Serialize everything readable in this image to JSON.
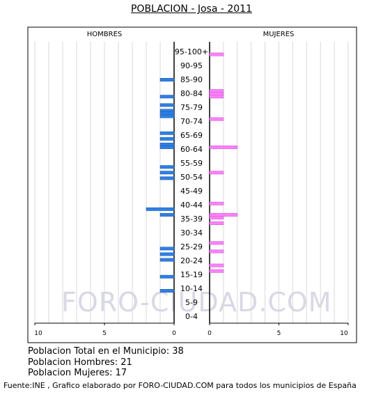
{
  "title": "POBLACION - Josa - 2011",
  "watermark": "FORO-CIUDAD.COM",
  "stats": {
    "total": "Poblacion Total en el Municipio: 38",
    "men": "Poblacion Hombres: 21",
    "women": "Poblacion Mujeres: 17"
  },
  "source": "Fuente:INE , Grafico elaborado por FORO-CIUDAD.COM para todos los municipios de España",
  "colors": {
    "men": "#2d7fe6",
    "women": "#ff80ff",
    "grid": "#d9d9d9"
  },
  "chart_data": {
    "type": "bar",
    "orientation": "horizontal",
    "left_label": "HOMBRES",
    "right_label": "MUJERES",
    "xlim": [
      0,
      10
    ],
    "x_ticks": [
      "10",
      "5",
      "0",
      "0",
      "5",
      "10"
    ],
    "age_groups": [
      "95-100+",
      "90-95",
      "85-90",
      "80-84",
      "75-79",
      "70-74",
      "65-69",
      "60-64",
      "55-59",
      "50-54",
      "45-49",
      "40-44",
      "35-39",
      "30-34",
      "25-29",
      "20-24",
      "15-19",
      "10-14",
      "5-9",
      "0-4"
    ],
    "ages": [
      95,
      94,
      93,
      92,
      91,
      90,
      89,
      88,
      87,
      86,
      85,
      84,
      83,
      82,
      81,
      80,
      79,
      78,
      77,
      76,
      75,
      74,
      73,
      72,
      71,
      70,
      69,
      68,
      67,
      66,
      65,
      64,
      63,
      62,
      61,
      60,
      59,
      58,
      57,
      56,
      55,
      54,
      53,
      52,
      51,
      50,
      49,
      48,
      47,
      46,
      45,
      44,
      43,
      42,
      41,
      40,
      39,
      38,
      37,
      36,
      35,
      34,
      33,
      32,
      31,
      30,
      29,
      28,
      27,
      26,
      25,
      24,
      23,
      22,
      21,
      20,
      19,
      18,
      17,
      16,
      15,
      14,
      13,
      12,
      11,
      10,
      9,
      8,
      7,
      6,
      5,
      4,
      3,
      2,
      1,
      0
    ],
    "series": [
      {
        "name": "HOMBRES",
        "side": "left",
        "values": [
          0,
          0,
          0,
          0,
          0,
          0,
          0,
          0,
          0,
          0,
          0,
          0,
          1,
          0,
          0,
          0,
          0,
          0,
          1,
          0,
          0,
          1,
          0,
          1,
          1,
          1,
          0,
          0,
          0,
          0,
          0,
          1,
          0,
          1,
          0,
          1,
          1,
          0,
          0,
          0,
          0,
          0,
          0,
          1,
          0,
          1,
          0,
          1,
          0,
          0,
          0,
          0,
          0,
          0,
          0,
          0,
          0,
          0,
          2,
          0,
          1,
          0,
          0,
          0,
          0,
          0,
          0,
          0,
          0,
          0,
          0,
          0,
          1,
          0,
          1,
          0,
          1,
          0,
          0,
          0,
          0,
          0,
          1,
          0,
          0,
          0,
          0,
          1,
          0,
          0,
          0,
          0,
          0,
          0,
          0,
          0
        ]
      },
      {
        "name": "MUJERES",
        "side": "right",
        "values": [
          0,
          0,
          0,
          1,
          0,
          0,
          0,
          0,
          0,
          0,
          0,
          0,
          0,
          0,
          0,
          0,
          1,
          1,
          1,
          0,
          0,
          0,
          0,
          0,
          0,
          0,
          1,
          0,
          0,
          0,
          0,
          0,
          0,
          0,
          0,
          0,
          2,
          0,
          0,
          0,
          0,
          0,
          0,
          0,
          0,
          1,
          0,
          0,
          0,
          0,
          0,
          0,
          0,
          0,
          0,
          0,
          1,
          0,
          0,
          0,
          2,
          1,
          0,
          1,
          0,
          0,
          0,
          0,
          0,
          0,
          1,
          0,
          0,
          1,
          0,
          0,
          0,
          0,
          1,
          0,
          1,
          0,
          0,
          0,
          0,
          0,
          0,
          0,
          0,
          0,
          0,
          0,
          0,
          0,
          0,
          0
        ]
      }
    ]
  }
}
